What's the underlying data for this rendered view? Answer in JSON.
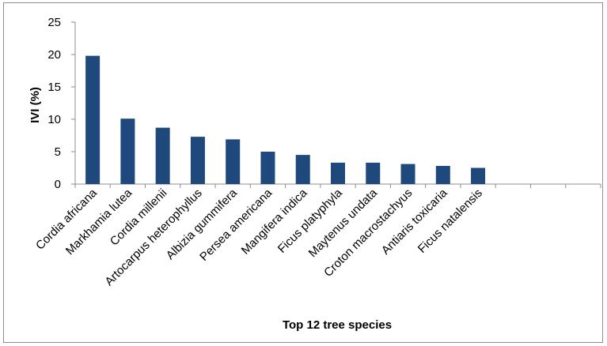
{
  "chart_data": {
    "type": "bar",
    "title": "",
    "xlabel": "Top 12 tree species",
    "ylabel": "IVI (%)",
    "ylim": [
      0,
      25
    ],
    "yticks": [
      0,
      5,
      10,
      15,
      20,
      25
    ],
    "grid": false,
    "legend": "none",
    "bar_color": "#1F497D",
    "empty_trailing_categories": 3,
    "categories": [
      "Cordia africana",
      "Markhamia lutea",
      "Cordia millenii",
      "Artocarpus heterophyllus",
      "Albizia gummifera",
      "Persea americana",
      "Mangifera indica",
      "Ficus platyphyla",
      "Maytenus undata",
      "Croton macrostachyus",
      "Antiaris toxicaria",
      "Ficus natalensis"
    ],
    "values": [
      19.8,
      10.1,
      8.7,
      7.3,
      6.9,
      5.0,
      4.5,
      3.3,
      3.3,
      3.1,
      2.8,
      2.5
    ]
  }
}
